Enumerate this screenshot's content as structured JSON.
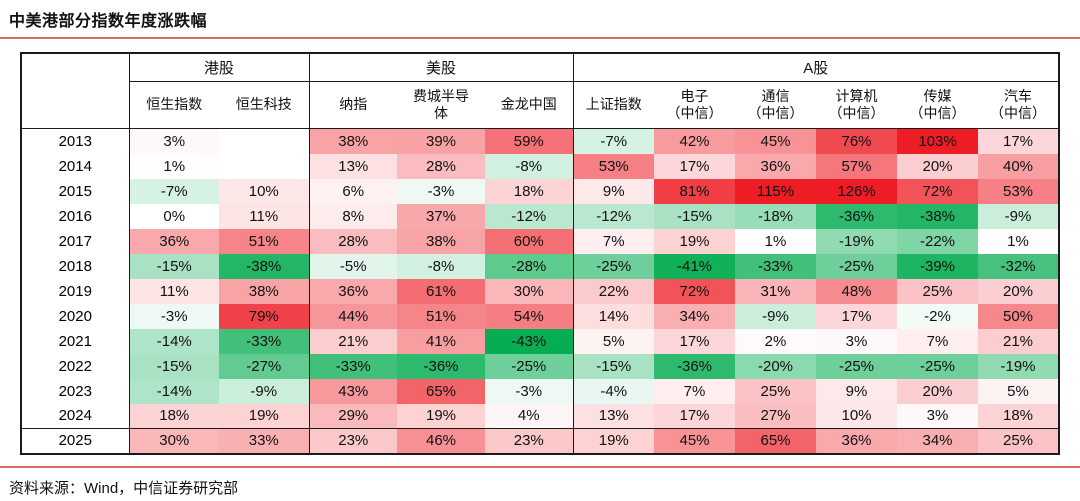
{
  "source": "资料来源：Wind，中信证券研究部",
  "chart_data": {
    "type": "heatmap",
    "title": "中美港部分指数年度涨跌幅",
    "legend_position": "none",
    "grid": "group-borders-only",
    "col_groups": [
      {
        "label": "港股",
        "span": 2
      },
      {
        "label": "美股",
        "span": 3
      },
      {
        "label": "A股",
        "span": 6
      }
    ],
    "columns": [
      "恒生指数",
      "恒生科技",
      "纳指",
      "费城半导\n体",
      "金龙中国",
      "上证指数",
      "电子\n（中信）",
      "通信\n（中信）",
      "计算机\n（中信）",
      "传媒\n（中信）",
      "汽车\n（中信）"
    ],
    "years": [
      "2013",
      "2014",
      "2015",
      "2016",
      "2017",
      "2018",
      "2019",
      "2020",
      "2021",
      "2022",
      "2023",
      "2024",
      "2025"
    ],
    "values_pct": [
      [
        3,
        null,
        38,
        39,
        59,
        -7,
        42,
        45,
        76,
        103,
        17
      ],
      [
        1,
        null,
        13,
        28,
        -8,
        53,
        17,
        36,
        57,
        20,
        40
      ],
      [
        -7,
        10,
        6,
        -3,
        18,
        9,
        81,
        115,
        126,
        72,
        53
      ],
      [
        0,
        11,
        8,
        37,
        -12,
        -12,
        -15,
        -18,
        -36,
        -38,
        -9
      ],
      [
        36,
        51,
        28,
        38,
        60,
        7,
        19,
        1,
        -19,
        -22,
        1
      ],
      [
        -15,
        -38,
        -5,
        -8,
        -28,
        -25,
        -41,
        -33,
        -25,
        -39,
        -32
      ],
      [
        11,
        38,
        36,
        61,
        30,
        22,
        72,
        31,
        48,
        25,
        20
      ],
      [
        -3,
        79,
        44,
        51,
        54,
        14,
        34,
        -9,
        17,
        -2,
        50
      ],
      [
        -14,
        -33,
        21,
        41,
        -43,
        5,
        17,
        2,
        3,
        7,
        21
      ],
      [
        -15,
        -27,
        -33,
        -36,
        -25,
        -15,
        -36,
        -20,
        -25,
        -25,
        -19
      ],
      [
        -14,
        -9,
        43,
        65,
        -3,
        -4,
        7,
        25,
        9,
        20,
        5
      ],
      [
        18,
        19,
        29,
        19,
        4,
        13,
        17,
        27,
        10,
        3,
        18
      ],
      [
        30,
        33,
        23,
        46,
        23,
        19,
        45,
        65,
        36,
        34,
        25
      ]
    ],
    "value_suffix": "%",
    "highlight_row": "2025",
    "color_scale": {
      "midpoint_color": "#ffffff",
      "positive_color": "#ee1c24",
      "negative_color": "#00ab4e",
      "positive_max_pct": 95,
      "negative_min_pct": -44
    },
    "accent_rule_color": "#dd6a62"
  }
}
